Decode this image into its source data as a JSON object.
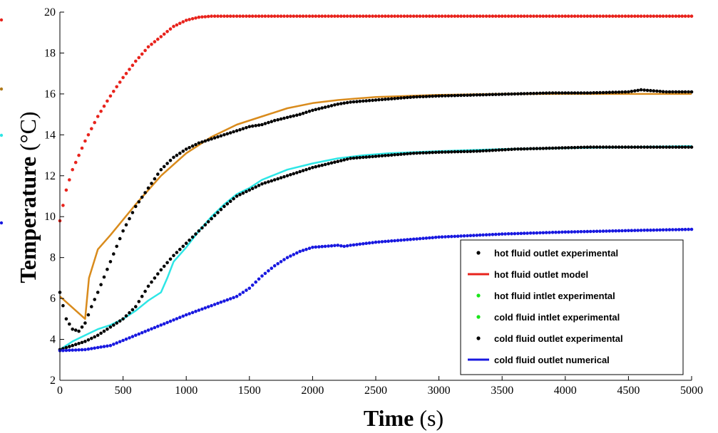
{
  "chart_data": {
    "type": "line",
    "title": "",
    "xlabel": {
      "bold": "Time",
      "rest": " (s)"
    },
    "ylabel": {
      "bold": "Temperature",
      "rest": " (°C)"
    },
    "xlim": [
      0,
      5000
    ],
    "ylim": [
      2,
      20
    ],
    "x_ticks": [
      "0",
      "500",
      "1000",
      "1500",
      "2000",
      "2500",
      "3000",
      "3500",
      "4000",
      "4500",
      "5000"
    ],
    "y_ticks": [
      "2",
      "4",
      "6",
      "8",
      "10",
      "12",
      "14",
      "16",
      "18",
      "20"
    ],
    "grid": false,
    "legend_position": "bottom-right",
    "legend": [
      {
        "label": "hot fluid outlet experimental",
        "color": "#000000",
        "style": "dot"
      },
      {
        "label": "hot fluid outlet model",
        "color": "#e8231c",
        "style": "line"
      },
      {
        "label": "hot fluid intlet experimental",
        "color": "#19e619",
        "style": "dot"
      },
      {
        "label": "cold fluid intlet experimental",
        "color": "#19e619",
        "style": "dot"
      },
      {
        "label": "cold fluid outlet experimental",
        "color": "#000000",
        "style": "dot"
      },
      {
        "label": "cold fluid outlet numerical",
        "color": "#1818e0",
        "style": "line"
      }
    ],
    "series": [
      {
        "color": "#e8231c",
        "style": "dots",
        "x": [
          0,
          50,
          100,
          150,
          200,
          300,
          400,
          500,
          600,
          700,
          800,
          900,
          1000,
          1100,
          1200,
          1300,
          2000,
          3000,
          4000,
          5000
        ],
        "y": [
          9.8,
          11.3,
          12.3,
          13.0,
          13.7,
          14.9,
          15.9,
          16.8,
          17.6,
          18.3,
          18.8,
          19.3,
          19.6,
          19.75,
          19.8,
          19.8,
          19.8,
          19.8,
          19.8,
          19.8
        ]
      },
      {
        "color": "#d98b1c",
        "style": "line",
        "x": [
          0,
          200,
          230,
          300,
          400,
          600,
          800,
          1000,
          1200,
          1400,
          1600,
          1800,
          2000,
          2200,
          2500,
          3000,
          3500,
          4000,
          4500,
          5000
        ],
        "y": [
          6.1,
          5.0,
          7.0,
          8.4,
          9.1,
          10.6,
          12.0,
          13.1,
          13.9,
          14.5,
          14.9,
          15.3,
          15.55,
          15.7,
          15.85,
          15.95,
          16.0,
          16.0,
          16.0,
          16.0
        ]
      },
      {
        "color": "#000000",
        "style": "dots",
        "x": [
          0,
          50,
          100,
          150,
          200,
          250,
          300,
          400,
          500,
          600,
          700,
          800,
          900,
          1000,
          1100,
          1200,
          1300,
          1400,
          1500,
          1600,
          1700,
          1800,
          1900,
          2000,
          2100,
          2200,
          2300,
          2500,
          2800,
          3000,
          3300,
          3600,
          3900,
          4200,
          4500,
          4600,
          4800,
          5000
        ],
        "y": [
          6.3,
          5.0,
          4.5,
          4.4,
          4.8,
          5.6,
          6.3,
          7.8,
          9.3,
          10.5,
          11.4,
          12.3,
          12.9,
          13.3,
          13.6,
          13.8,
          14.0,
          14.2,
          14.4,
          14.5,
          14.7,
          14.85,
          15.0,
          15.2,
          15.35,
          15.5,
          15.6,
          15.7,
          15.85,
          15.9,
          15.95,
          16.0,
          16.05,
          16.05,
          16.1,
          16.2,
          16.1,
          16.1
        ]
      },
      {
        "color": "#2ee6e6",
        "style": "line",
        "x": [
          0,
          100,
          200,
          300,
          400,
          500,
          600,
          700,
          800,
          850,
          900,
          1000,
          1100,
          1200,
          1300,
          1400,
          1500,
          1600,
          1800,
          2000,
          2200,
          2400,
          2600,
          3000,
          3500,
          4000,
          4500,
          5000
        ],
        "y": [
          3.5,
          3.9,
          4.2,
          4.5,
          4.7,
          5.0,
          5.4,
          5.9,
          6.3,
          7.0,
          7.8,
          8.5,
          9.3,
          10.0,
          10.6,
          11.1,
          11.4,
          11.8,
          12.3,
          12.6,
          12.85,
          13.0,
          13.1,
          13.2,
          13.3,
          13.35,
          13.4,
          13.45
        ]
      },
      {
        "color": "#000000",
        "style": "dots",
        "x": [
          0,
          100,
          200,
          300,
          400,
          500,
          600,
          700,
          800,
          900,
          1000,
          1100,
          1200,
          1300,
          1400,
          1500,
          1600,
          1700,
          1800,
          1900,
          2000,
          2100,
          2200,
          2300,
          2400,
          2600,
          2800,
          3000,
          3300,
          3600,
          3900,
          4200,
          4500,
          4800,
          5000
        ],
        "y": [
          3.5,
          3.7,
          3.9,
          4.2,
          4.6,
          5.0,
          5.6,
          6.6,
          7.4,
          8.1,
          8.7,
          9.3,
          9.9,
          10.5,
          11.0,
          11.3,
          11.6,
          11.8,
          12.0,
          12.2,
          12.4,
          12.55,
          12.7,
          12.85,
          12.9,
          13.0,
          13.1,
          13.15,
          13.2,
          13.3,
          13.35,
          13.4,
          13.4,
          13.4,
          13.4
        ]
      },
      {
        "color": "#1818e0",
        "style": "dots",
        "x": [
          0,
          200,
          400,
          600,
          800,
          1000,
          1200,
          1400,
          1500,
          1600,
          1700,
          1800,
          1900,
          2000,
          2100,
          2200,
          2250,
          2300,
          2500,
          3000,
          3500,
          4000,
          4500,
          5000
        ],
        "y": [
          3.45,
          3.5,
          3.7,
          4.2,
          4.7,
          5.2,
          5.65,
          6.1,
          6.5,
          7.1,
          7.6,
          8.0,
          8.3,
          8.5,
          8.55,
          8.6,
          8.55,
          8.6,
          8.75,
          9.0,
          9.15,
          9.25,
          9.32,
          9.38
        ]
      }
    ]
  }
}
